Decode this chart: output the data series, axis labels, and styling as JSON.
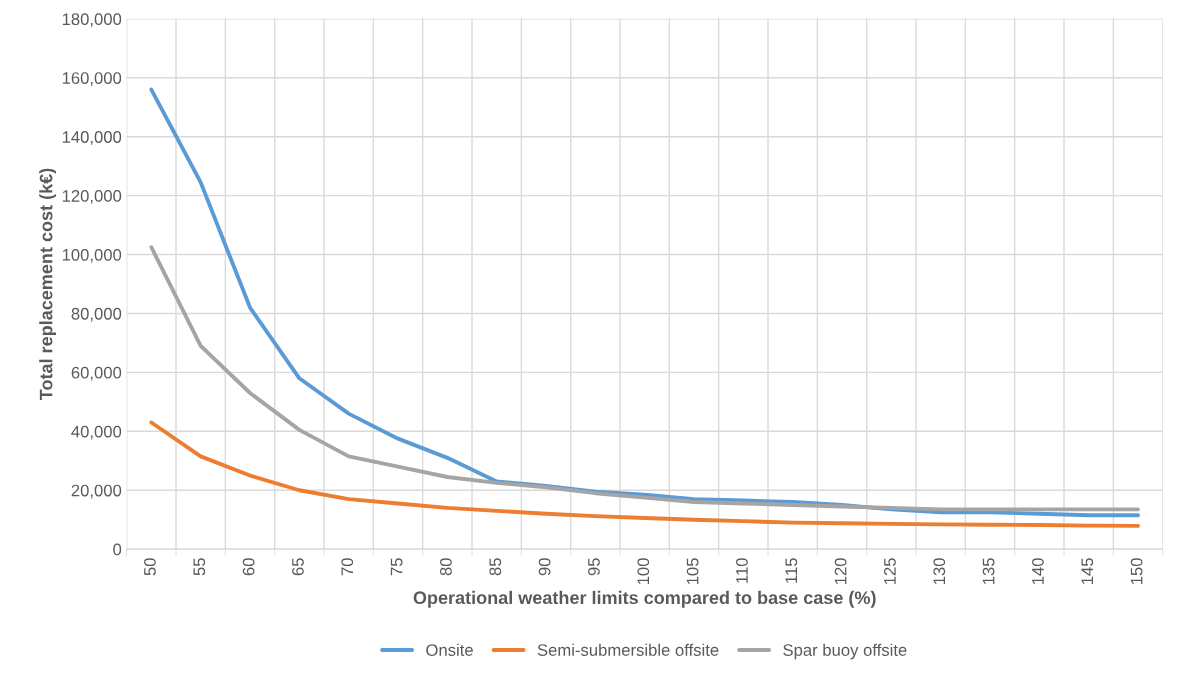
{
  "chart_data": {
    "type": "line",
    "xlabel": "Operational weather limits compared to base case (%)",
    "ylabel": "Total replacement cost (k€)",
    "categories": [
      "50",
      "55",
      "60",
      "65",
      "70",
      "75",
      "80",
      "85",
      "90",
      "95",
      "100",
      "105",
      "110",
      "115",
      "120",
      "125",
      "130",
      "135",
      "140",
      "145",
      "150"
    ],
    "series": [
      {
        "name": "Onsite",
        "color": "#5b9bd5",
        "values": [
          156000,
          124500,
          82000,
          58000,
          46000,
          37500,
          31000,
          23000,
          21500,
          19500,
          18500,
          17000,
          16500,
          16000,
          15000,
          13500,
          12500,
          12500,
          12000,
          11500,
          11500
        ]
      },
      {
        "name": "Semi-submersible offsite",
        "color": "#ed7d31",
        "values": [
          43000,
          31500,
          25000,
          20000,
          17000,
          15500,
          14000,
          13000,
          12000,
          11200,
          10600,
          10000,
          9500,
          9000,
          8800,
          8600,
          8400,
          8300,
          8200,
          8000,
          7900
        ]
      },
      {
        "name": "Spar buoy offsite",
        "color": "#a5a5a5",
        "values": [
          102500,
          69000,
          53000,
          40500,
          31500,
          28000,
          24500,
          22500,
          21000,
          19000,
          17500,
          16000,
          15500,
          15000,
          14500,
          14000,
          13500,
          13500,
          13500,
          13500,
          13500
        ]
      }
    ],
    "ylim": [
      0,
      180000
    ],
    "yticks": [
      {
        "value": 0,
        "label": "0"
      },
      {
        "value": 20000,
        "label": "20,000"
      },
      {
        "value": 40000,
        "label": "40,000"
      },
      {
        "value": 60000,
        "label": "60,000"
      },
      {
        "value": 80000,
        "label": "80,000"
      },
      {
        "value": 100000,
        "label": "100,000"
      },
      {
        "value": 120000,
        "label": "120,000"
      },
      {
        "value": 140000,
        "label": "140,000"
      },
      {
        "value": 160000,
        "label": "160,000"
      },
      {
        "value": 180000,
        "label": "180,000"
      }
    ],
    "grid": true,
    "legend": "bottom",
    "marker": "none",
    "line_style": "solid"
  }
}
